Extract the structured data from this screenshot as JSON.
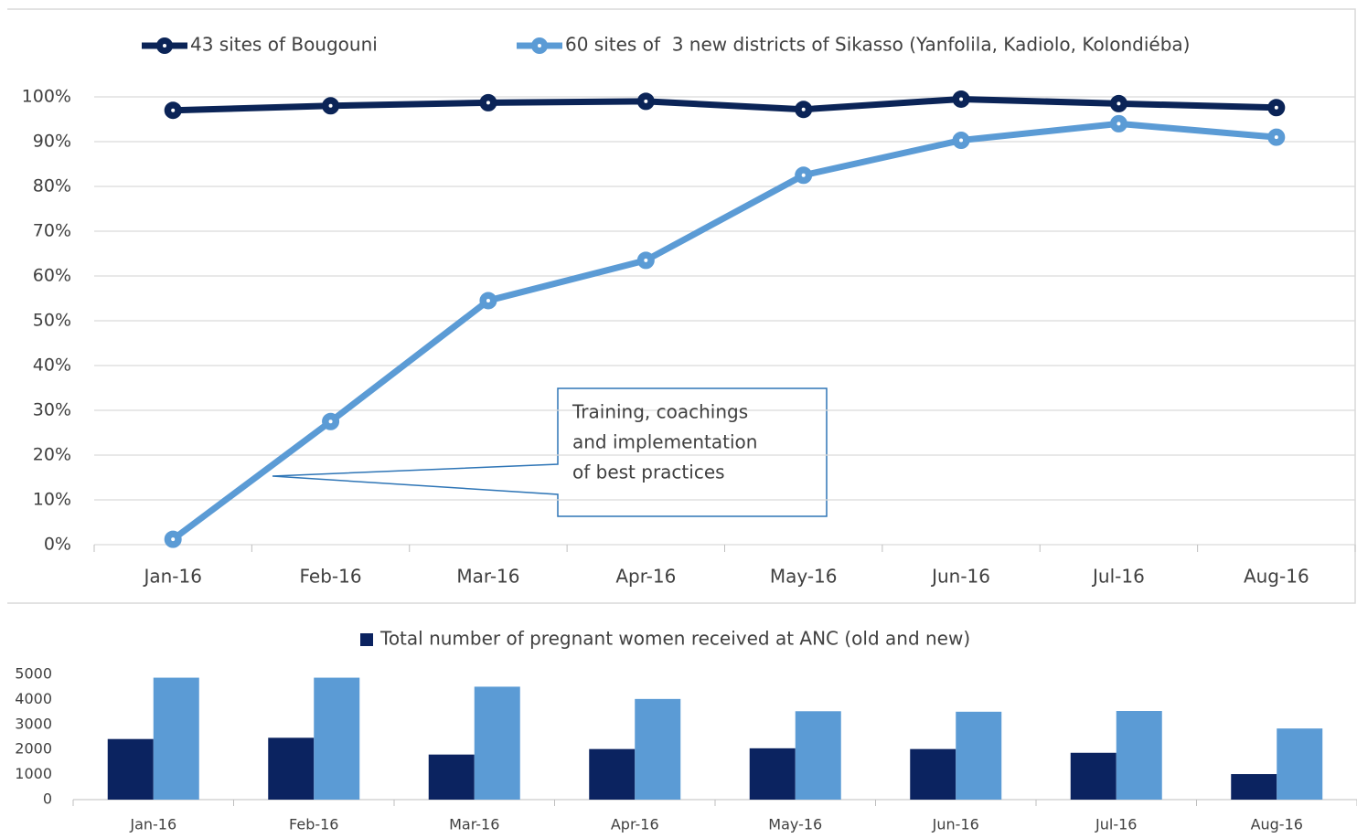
{
  "chart_data": [
    {
      "type": "line",
      "categories": [
        "Jan-16",
        "Feb-16",
        "Mar-16",
        "Apr-16",
        "May-16",
        "Jun-16",
        "Jul-16",
        "Aug-16"
      ],
      "series": [
        {
          "name": "43 sites of Bougouni",
          "color": "#0b2457",
          "values": [
            97,
            98,
            98.7,
            99,
            97.2,
            99.5,
            98.5,
            97.6
          ]
        },
        {
          "name": "60 sites of  3 new districts of Sikasso (Yanfolila, Kadiolo, Kolondiéba)",
          "color": "#5b9bd5",
          "values": [
            1.2,
            27.5,
            54.5,
            63.5,
            82.5,
            90.3,
            94,
            91
          ]
        }
      ],
      "ylim": [
        0,
        100
      ],
      "yticks": [
        {
          "value": 0,
          "label": "0%"
        },
        {
          "value": 10,
          "label": "10%"
        },
        {
          "value": 20,
          "label": "20%"
        },
        {
          "value": 30,
          "label": "30%"
        },
        {
          "value": 40,
          "label": "40%"
        },
        {
          "value": 50,
          "label": "50%"
        },
        {
          "value": 60,
          "label": "60%"
        },
        {
          "value": 70,
          "label": "70%"
        },
        {
          "value": 80,
          "label": "80%"
        },
        {
          "value": 90,
          "label": "90%"
        },
        {
          "value": 100,
          "label": "100%"
        }
      ],
      "grid": true,
      "annotation": [
        "Training, coachings",
        "and implementation",
        "of best practices"
      ]
    },
    {
      "type": "bar",
      "categories": [
        "Jan-16",
        "Feb-16",
        "Mar-16",
        "Apr-16",
        "May-16",
        "Jun-16",
        "Jul-16",
        "Aug-16"
      ],
      "series": [
        {
          "name": "Total number of pregnant women received at ANC (old and new)",
          "color": "#0b2360",
          "values": [
            2420,
            2470,
            1800,
            2020,
            2050,
            2020,
            1870,
            1020
          ]
        },
        {
          "color": "#5b9bd5",
          "values": [
            4870,
            4870,
            4510,
            4020,
            3530,
            3510,
            3540,
            2840
          ]
        }
      ],
      "ylim": [
        0,
        5000
      ],
      "yticks": [
        0,
        1000,
        2000,
        3000,
        4000,
        5000
      ],
      "grid": false
    }
  ]
}
